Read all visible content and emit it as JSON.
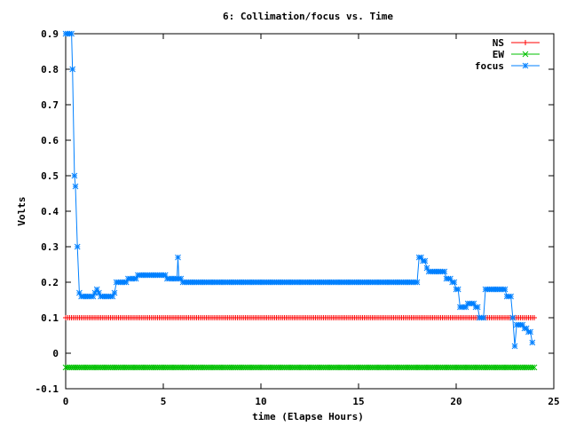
{
  "chart_data": {
    "type": "line",
    "title": "6: Collimation/focus vs. Time",
    "xlabel": "time (Elapse Hours)",
    "ylabel": "Volts",
    "xlim": [
      0,
      25
    ],
    "ylim": [
      -0.1,
      0.9
    ],
    "xticks": [
      0,
      5,
      10,
      15,
      20,
      25
    ],
    "xtick_labels": [
      "0",
      "5",
      "10",
      "15",
      "20",
      "25"
    ],
    "yticks": [
      -0.1,
      0,
      0.1,
      0.2,
      0.3,
      0.4,
      0.5,
      0.6,
      0.7,
      0.8,
      0.9
    ],
    "ytick_labels": [
      "-0.1",
      "0",
      "0.1",
      "0.2",
      "0.3",
      "0.4",
      "0.5",
      "0.6",
      "0.7",
      "0.8",
      "0.9"
    ],
    "grid": false,
    "legend_position": "top-right",
    "series": [
      {
        "name": "NS",
        "color": "#ff0000",
        "marker": "plus",
        "x": [
          0,
          24
        ],
        "y": [
          0.1,
          0.1
        ]
      },
      {
        "name": "EW",
        "color": "#00c000",
        "marker": "cross",
        "x": [
          0,
          24
        ],
        "y": [
          -0.04,
          -0.04
        ]
      },
      {
        "name": "focus",
        "color": "#0080ff",
        "marker": "star",
        "x": [
          0.0,
          0.3,
          0.35,
          0.45,
          0.5,
          0.6,
          0.7,
          0.8,
          1.0,
          1.5,
          1.6,
          1.7,
          1.8,
          2.5,
          2.6,
          3.0,
          3.2,
          3.5,
          3.7,
          5.0,
          5.2,
          5.7,
          5.75,
          5.8,
          6.0,
          18.0,
          18.1,
          18.3,
          18.5,
          18.6,
          19.3,
          19.5,
          19.8,
          20.0,
          20.2,
          20.4,
          20.6,
          21.0,
          21.2,
          21.4,
          21.5,
          22.5,
          22.6,
          22.8,
          22.9,
          23.0,
          23.1,
          23.5,
          23.7,
          23.9
        ],
        "y": [
          0.9,
          0.9,
          0.8,
          0.5,
          0.47,
          0.3,
          0.17,
          0.16,
          0.16,
          0.17,
          0.18,
          0.17,
          0.16,
          0.17,
          0.2,
          0.2,
          0.21,
          0.21,
          0.22,
          0.22,
          0.21,
          0.21,
          0.27,
          0.21,
          0.2,
          0.2,
          0.27,
          0.26,
          0.24,
          0.23,
          0.23,
          0.21,
          0.2,
          0.18,
          0.13,
          0.13,
          0.14,
          0.13,
          0.1,
          0.1,
          0.18,
          0.18,
          0.16,
          0.16,
          0.1,
          0.02,
          0.08,
          0.07,
          0.06,
          0.03
        ]
      }
    ]
  }
}
